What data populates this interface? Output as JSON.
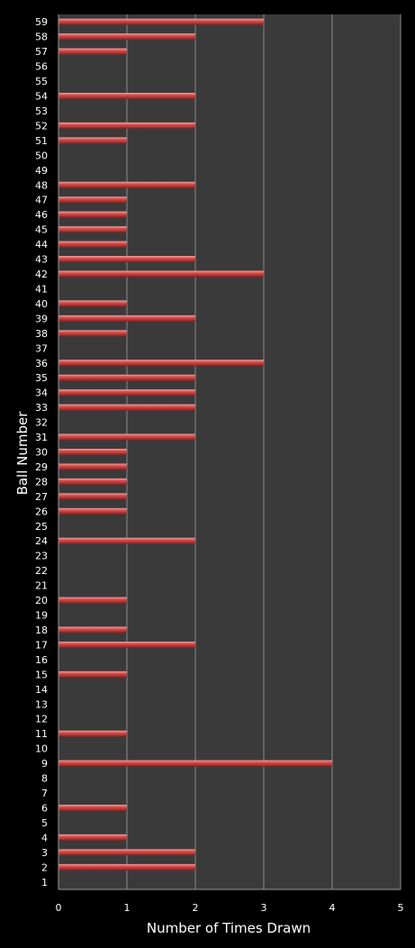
{
  "chart_data": {
    "type": "bar",
    "orientation": "horizontal",
    "xlabel": "Number of Times Drawn",
    "ylabel": "Ball Number",
    "xlim": [
      0,
      5
    ],
    "x_ticks": [
      "0",
      "1",
      "2",
      "3",
      "4",
      "5"
    ],
    "grid": true,
    "colors": {
      "bar": "#d9504e",
      "bar_highlight": "#f2a19f",
      "bar_shadow": "#8a1e1c",
      "plot_bg": "#3a3a3a",
      "gridline": "#8a8a8a",
      "page_bg": "#000000"
    },
    "categories": [
      "1",
      "2",
      "3",
      "4",
      "5",
      "6",
      "7",
      "8",
      "9",
      "10",
      "11",
      "12",
      "13",
      "14",
      "15",
      "16",
      "17",
      "18",
      "19",
      "20",
      "21",
      "22",
      "23",
      "24",
      "25",
      "26",
      "27",
      "28",
      "29",
      "30",
      "31",
      "32",
      "33",
      "34",
      "35",
      "36",
      "37",
      "38",
      "39",
      "40",
      "41",
      "42",
      "43",
      "44",
      "45",
      "46",
      "47",
      "48",
      "49",
      "50",
      "51",
      "52",
      "53",
      "54",
      "55",
      "56",
      "57",
      "58",
      "59"
    ],
    "values": [
      0,
      2,
      2,
      1,
      0,
      1,
      0,
      0,
      4,
      0,
      1,
      0,
      0,
      0,
      1,
      0,
      2,
      1,
      0,
      1,
      0,
      0,
      0,
      2,
      0,
      1,
      1,
      1,
      1,
      1,
      2,
      0,
      2,
      2,
      2,
      3,
      0,
      1,
      2,
      1,
      0,
      3,
      2,
      1,
      1,
      1,
      1,
      2,
      0,
      0,
      1,
      2,
      0,
      2,
      0,
      0,
      1,
      2,
      3
    ]
  }
}
